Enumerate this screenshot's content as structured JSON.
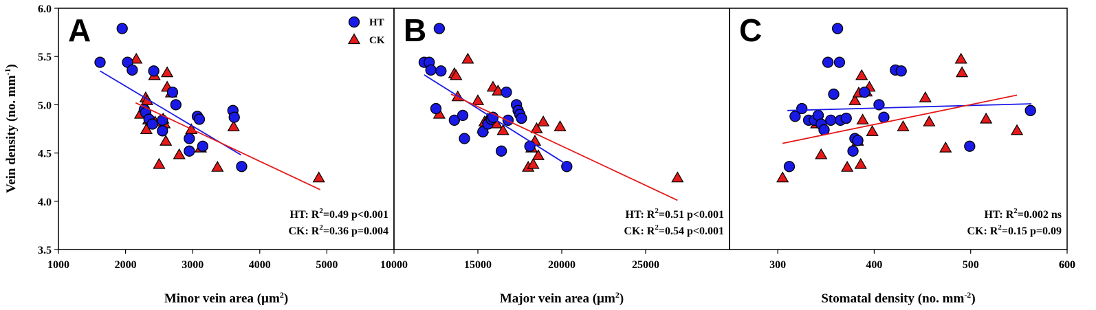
{
  "figure": {
    "ylabel": "Vein density (no. mm",
    "ylabel_sup": "-1",
    "ylabel_close": ")",
    "legend": [
      {
        "name": "HT",
        "marker": "circle",
        "color": "#1a1ae6"
      },
      {
        "name": "CK",
        "marker": "triangle",
        "color": "#e61a1a"
      }
    ],
    "colors": {
      "HT": "#1a1ae6",
      "CK": "#e61a1a",
      "ht_line": "#1a1ae6",
      "ck_line": "#e61a1a"
    }
  },
  "chart_data": [
    {
      "type": "scatter",
      "panel": "A",
      "xlabel": "Minor vein area (µm",
      "xlabel_sup": "2",
      "xlabel_close": ")",
      "ylabel": "Vein density (no. mm-1)",
      "xlim": [
        1000,
        6000
      ],
      "ylim": [
        3.5,
        6.0
      ],
      "xticks": [
        1000,
        2000,
        3000,
        4000,
        5000
      ],
      "yticks": [
        3.5,
        4.0,
        4.5,
        5.0,
        5.5,
        6.0
      ],
      "show_yticks": true,
      "series": [
        {
          "name": "HT",
          "marker": "circle",
          "x": [
            1620,
            1950,
            2030,
            2100,
            2420,
            2280,
            2300,
            2350,
            2400,
            2550,
            2550,
            2700,
            2750,
            2950,
            2950,
            3070,
            3100,
            3150,
            3600,
            3620,
            3730
          ],
          "y": [
            5.44,
            5.79,
            5.44,
            5.36,
            5.35,
            4.95,
            4.92,
            4.85,
            4.8,
            4.84,
            4.73,
            5.13,
            5.0,
            4.65,
            4.52,
            4.88,
            4.85,
            4.57,
            4.94,
            4.87,
            4.36
          ],
          "fit": {
            "x0": 1620,
            "y0": 5.35,
            "x1": 3720,
            "y1": 4.48
          }
        },
        {
          "name": "CK",
          "marker": "triangle",
          "x": [
            2160,
            2220,
            2300,
            2320,
            2310,
            2340,
            2430,
            2440,
            2500,
            2560,
            2580,
            2600,
            2620,
            2620,
            2680,
            2800,
            2980,
            3120,
            3370,
            3610,
            4880
          ],
          "y": [
            5.47,
            4.9,
            5.07,
            5.04,
            4.74,
            4.84,
            5.3,
            4.82,
            4.38,
            4.85,
            4.8,
            4.62,
            5.18,
            5.33,
            5.12,
            4.48,
            4.74,
            4.55,
            4.35,
            4.77,
            4.24
          ],
          "fit": {
            "x0": 2150,
            "y0": 5.02,
            "x1": 4900,
            "y1": 4.12
          }
        }
      ],
      "annotation": [
        "HT: R",
        "2",
        "=0.49 p<0.001",
        "CK: R",
        "2",
        "=0.36 p=0.004"
      ]
    },
    {
      "type": "scatter",
      "panel": "B",
      "xlabel": "Major vein area (µm",
      "xlabel_sup": "2",
      "xlabel_close": ")",
      "xlim": [
        10000,
        30000
      ],
      "ylim": [
        3.5,
        6.0
      ],
      "xticks": [
        10000,
        15000,
        20000,
        25000
      ],
      "show_yticks": false,
      "series": [
        {
          "name": "HT",
          "marker": "circle",
          "x": [
            11800,
            12100,
            12200,
            12700,
            12800,
            12500,
            13600,
            14200,
            14100,
            15300,
            15600,
            15800,
            15900,
            16400,
            16700,
            16800,
            17300,
            17400,
            17500,
            17600,
            18100,
            20300
          ],
          "y": [
            5.44,
            5.44,
            5.36,
            5.79,
            5.35,
            4.96,
            4.84,
            4.65,
            4.89,
            4.72,
            4.8,
            4.85,
            4.87,
            4.52,
            5.13,
            4.84,
            5.0,
            4.94,
            4.9,
            4.86,
            4.57,
            4.36
          ],
          "fit": {
            "x0": 11800,
            "y0": 5.31,
            "x1": 20300,
            "y1": 4.38
          }
        },
        {
          "name": "CK",
          "marker": "triangle",
          "x": [
            12700,
            13600,
            13700,
            13800,
            14400,
            15000,
            15300,
            15400,
            15600,
            15900,
            16100,
            16200,
            16500,
            18000,
            18200,
            18300,
            18400,
            18500,
            18600,
            18900,
            19900,
            26900
          ],
          "y": [
            4.9,
            5.32,
            5.3,
            5.08,
            5.47,
            5.04,
            4.75,
            4.82,
            4.85,
            5.18,
            4.8,
            5.14,
            4.73,
            4.35,
            4.55,
            4.38,
            4.62,
            4.75,
            4.47,
            4.82,
            4.77,
            4.24
          ],
          "fit": {
            "x0": 13400,
            "y0": 5.11,
            "x1": 26900,
            "y1": 4.01
          }
        }
      ],
      "annotation": [
        "HT: R",
        "2",
        "=0.51 p<0.001",
        "CK: R",
        "2",
        "=0.54 p<0.001"
      ]
    },
    {
      "type": "scatter",
      "panel": "C",
      "xlabel": "Stomatal density (no. mm",
      "xlabel_sup": "-2",
      "xlabel_close": ")",
      "xlim": [
        250,
        600
      ],
      "ylim": [
        3.5,
        6.0
      ],
      "xticks": [
        300,
        400,
        500,
        600
      ],
      "show_yticks": false,
      "series": [
        {
          "name": "HT",
          "marker": "circle",
          "x": [
            312,
            318,
            325,
            332,
            338,
            342,
            345,
            348,
            352,
            355,
            358,
            362,
            364,
            365,
            371,
            378,
            380,
            383,
            390,
            405,
            410,
            422,
            428,
            499,
            562
          ],
          "y": [
            4.36,
            4.88,
            4.96,
            4.84,
            4.84,
            4.89,
            4.8,
            4.74,
            5.44,
            4.84,
            5.11,
            5.79,
            5.44,
            4.84,
            4.86,
            4.52,
            4.65,
            4.63,
            5.13,
            5.0,
            4.87,
            5.36,
            5.35,
            4.57,
            4.94
          ],
          "fit": {
            "x0": 310,
            "y0": 4.94,
            "x1": 563,
            "y1": 5.01
          }
        },
        {
          "name": "CK",
          "marker": "triangle",
          "x": [
            305,
            340,
            345,
            372,
            380,
            383,
            384,
            386,
            387,
            388,
            392,
            395,
            398,
            430,
            453,
            457,
            474,
            490,
            491,
            516,
            548
          ],
          "y": [
            4.24,
            4.8,
            4.48,
            4.35,
            5.04,
            4.62,
            5.12,
            4.38,
            5.3,
            4.84,
            5.13,
            5.18,
            4.72,
            4.77,
            5.07,
            4.82,
            4.55,
            5.47,
            5.33,
            4.85,
            4.73
          ],
          "fit": {
            "x0": 305,
            "y0": 4.6,
            "x1": 548,
            "y1": 5.1
          }
        }
      ],
      "annotation": [
        "HT: R",
        "2",
        "=0.002 ns",
        "CK: R",
        "2",
        "=0.15 p=0.09"
      ]
    }
  ]
}
